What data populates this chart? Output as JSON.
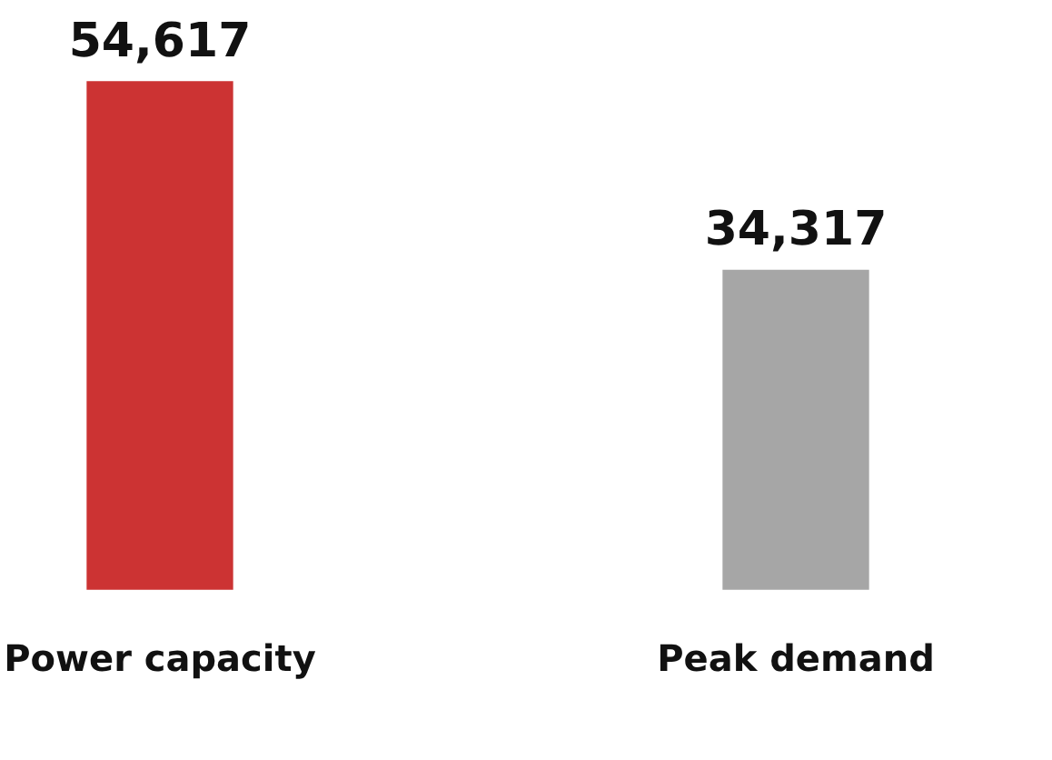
{
  "chart_data": {
    "type": "bar",
    "categories": [
      "Power capacity",
      "Peak demand"
    ],
    "values": [
      54617,
      34317
    ],
    "colors": [
      "#cc3333",
      "#a6a6a6"
    ],
    "value_labels": [
      "54,617",
      "34,317"
    ]
  }
}
